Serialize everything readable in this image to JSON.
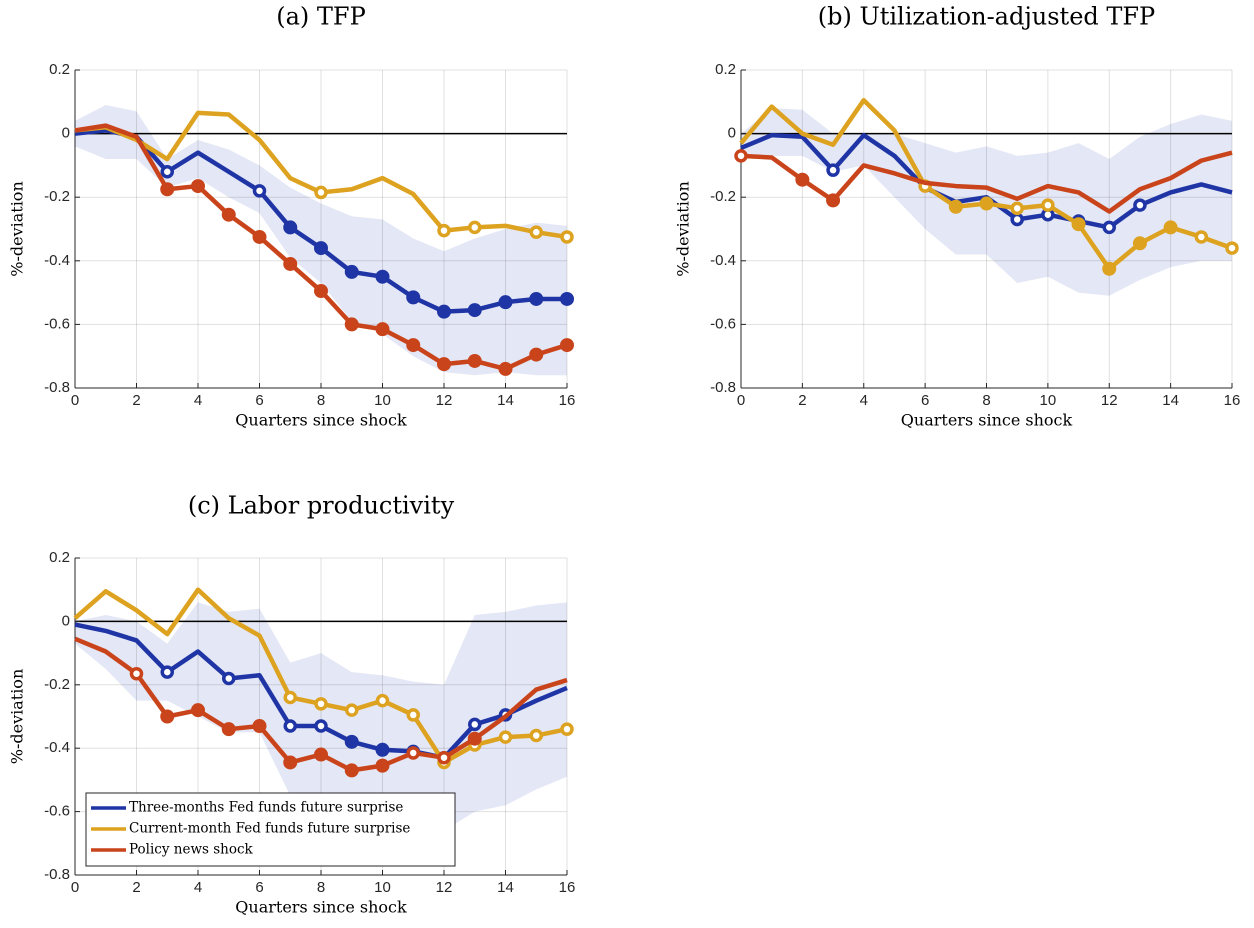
{
  "chart_data": [
    {
      "type": "line",
      "title": "(a) TFP",
      "xlabel": "Quarters since shock",
      "ylabel": "%-deviation",
      "x": [
        0,
        1,
        2,
        3,
        4,
        5,
        6,
        7,
        8,
        9,
        10,
        11,
        12,
        13,
        14,
        15,
        16
      ],
      "xlim": [
        0,
        16
      ],
      "xticks": [
        0,
        2,
        4,
        6,
        8,
        10,
        12,
        14,
        16
      ],
      "ylim": [
        -0.8,
        0.2
      ],
      "yticks": [
        -0.8,
        -0.6,
        -0.4,
        -0.2,
        0,
        0.2
      ],
      "grid": true,
      "hline": 0,
      "band": {
        "color": "#e4e7f5",
        "upper": [
          0.04,
          0.09,
          0.07,
          -0.08,
          -0.02,
          -0.05,
          -0.1,
          -0.17,
          -0.22,
          -0.26,
          -0.27,
          -0.33,
          -0.37,
          -0.33,
          -0.3,
          -0.28,
          -0.29
        ],
        "lower": [
          -0.04,
          -0.08,
          -0.08,
          -0.17,
          -0.14,
          -0.2,
          -0.25,
          -0.39,
          -0.47,
          -0.59,
          -0.63,
          -0.7,
          -0.75,
          -0.76,
          -0.75,
          -0.76,
          -0.76
        ]
      },
      "series": [
        {
          "color": "#1f35a5",
          "values": [
            0,
            0.01,
            -0.01,
            -0.12,
            -0.06,
            -0.12,
            -0.18,
            -0.295,
            -0.36,
            -0.435,
            -0.45,
            -0.515,
            -0.56,
            -0.555,
            -0.53,
            -0.52,
            -0.52
          ],
          "markers": [
            null,
            null,
            null,
            "open",
            null,
            null,
            "open",
            "filled",
            "filled",
            "filled",
            "filled",
            "filled",
            "filled",
            "filled",
            "filled",
            "filled",
            "filled"
          ]
        },
        {
          "color": "#dda21f",
          "values": [
            0.01,
            0.02,
            -0.02,
            -0.08,
            0.065,
            0.06,
            -0.02,
            -0.14,
            -0.185,
            -0.175,
            -0.14,
            -0.19,
            -0.305,
            -0.295,
            -0.29,
            -0.31,
            -0.325
          ],
          "markers": [
            null,
            null,
            null,
            null,
            null,
            null,
            null,
            null,
            "open",
            null,
            null,
            null,
            "open",
            "open",
            null,
            "open",
            "open"
          ]
        },
        {
          "color": "#c9441b",
          "values": [
            0.01,
            0.025,
            -0.01,
            -0.175,
            -0.165,
            -0.255,
            -0.325,
            -0.41,
            -0.495,
            -0.6,
            -0.615,
            -0.665,
            -0.725,
            -0.715,
            -0.74,
            -0.695,
            -0.665
          ],
          "markers": [
            null,
            null,
            null,
            "filled",
            "filled",
            "filled",
            "filled",
            "filled",
            "filled",
            "filled",
            "filled",
            "filled",
            "filled",
            "filled",
            "filled",
            "filled",
            "filled"
          ]
        }
      ]
    },
    {
      "type": "line",
      "title": "(b) Utilization-adjusted TFP",
      "xlabel": "Quarters since shock",
      "ylabel": "%-deviation",
      "x": [
        0,
        1,
        2,
        3,
        4,
        5,
        6,
        7,
        8,
        9,
        10,
        11,
        12,
        13,
        14,
        15,
        16
      ],
      "xlim": [
        0,
        16
      ],
      "xticks": [
        0,
        2,
        4,
        6,
        8,
        10,
        12,
        14,
        16
      ],
      "ylim": [
        -0.8,
        0.2
      ],
      "yticks": [
        -0.8,
        -0.6,
        -0.4,
        -0.2,
        0,
        0.2
      ],
      "grid": true,
      "hline": 0,
      "band": {
        "color": "#e4e7f5",
        "upper": [
          0,
          0.08,
          0.075,
          0,
          0,
          0,
          -0.03,
          -0.06,
          -0.04,
          -0.07,
          -0.06,
          -0.03,
          -0.08,
          -0.01,
          0.03,
          0.06,
          0.04
        ],
        "lower": [
          -0.08,
          -0.07,
          -0.07,
          -0.12,
          -0.1,
          -0.2,
          -0.3,
          -0.38,
          -0.38,
          -0.47,
          -0.45,
          -0.5,
          -0.51,
          -0.46,
          -0.42,
          -0.4,
          -0.4
        ]
      },
      "series": [
        {
          "color": "#1f35a5",
          "values": [
            -0.045,
            -0.005,
            -0.01,
            -0.115,
            -0.005,
            -0.07,
            -0.17,
            -0.215,
            -0.2,
            -0.27,
            -0.255,
            -0.275,
            -0.295,
            -0.225,
            -0.185,
            -0.16,
            -0.185
          ],
          "markers": [
            null,
            null,
            null,
            "open",
            null,
            null,
            null,
            null,
            null,
            "open",
            "open",
            "open",
            "open",
            "open",
            null,
            null,
            null
          ]
        },
        {
          "color": "#dda21f",
          "values": [
            -0.03,
            0.085,
            0,
            -0.035,
            0.105,
            0.01,
            -0.165,
            -0.23,
            -0.22,
            -0.235,
            -0.225,
            -0.285,
            -0.425,
            -0.345,
            -0.295,
            -0.325,
            -0.36
          ],
          "markers": [
            null,
            null,
            null,
            null,
            null,
            null,
            "open",
            "filled",
            "filled",
            "open",
            "open",
            "filled",
            "filled",
            "filled",
            "filled",
            "open",
            "open"
          ]
        },
        {
          "color": "#c9441b",
          "values": [
            -0.07,
            -0.075,
            -0.145,
            -0.21,
            -0.1,
            -0.125,
            -0.155,
            -0.165,
            -0.17,
            -0.205,
            -0.165,
            -0.185,
            -0.245,
            -0.175,
            -0.14,
            -0.085,
            -0.06
          ],
          "markers": [
            "open",
            null,
            "filled",
            "filled",
            null,
            null,
            null,
            null,
            null,
            null,
            null,
            null,
            null,
            null,
            null,
            null,
            null
          ]
        }
      ]
    },
    {
      "type": "line",
      "title": "(c) Labor productivity",
      "xlabel": "Quarters since shock",
      "ylabel": "%-deviation",
      "x": [
        0,
        1,
        2,
        3,
        4,
        5,
        6,
        7,
        8,
        9,
        10,
        11,
        12,
        13,
        14,
        15,
        16
      ],
      "xlim": [
        0,
        16
      ],
      "xticks": [
        0,
        2,
        4,
        6,
        8,
        10,
        12,
        14,
        16
      ],
      "ylim": [
        -0.8,
        0.2
      ],
      "yticks": [
        -0.8,
        -0.6,
        -0.4,
        -0.2,
        0,
        0.2
      ],
      "grid": true,
      "hline": 0,
      "legend": "lower left",
      "band": {
        "color": "#e4e7f5",
        "upper": [
          0,
          0.02,
          0,
          -0.07,
          0.06,
          0.03,
          0.04,
          -0.13,
          -0.1,
          -0.16,
          -0.17,
          -0.19,
          -0.2,
          0.02,
          0.03,
          0.05,
          0.06
        ],
        "lower": [
          -0.07,
          -0.15,
          -0.25,
          -0.25,
          -0.3,
          -0.35,
          -0.35,
          -0.55,
          -0.55,
          -0.56,
          -0.57,
          -0.6,
          -0.66,
          -0.6,
          -0.58,
          -0.53,
          -0.49
        ]
      },
      "series": [
        {
          "name": "Three-months Fed funds future surprise",
          "color": "#1f35a5",
          "values": [
            -0.01,
            -0.03,
            -0.06,
            -0.16,
            -0.095,
            -0.18,
            -0.17,
            -0.33,
            -0.33,
            -0.38,
            -0.405,
            -0.41,
            -0.43,
            -0.325,
            -0.295,
            -0.25,
            -0.21
          ],
          "markers": [
            null,
            null,
            null,
            "open",
            null,
            "open",
            null,
            "open",
            "open",
            "filled",
            "filled",
            "open",
            "open",
            "open",
            "open",
            null,
            null
          ]
        },
        {
          "name": "Current-month Fed funds future surprise",
          "color": "#dda21f",
          "values": [
            0.01,
            0.095,
            0.035,
            -0.04,
            0.1,
            0.01,
            -0.045,
            -0.24,
            -0.26,
            -0.28,
            -0.25,
            -0.295,
            -0.445,
            -0.39,
            -0.365,
            -0.36,
            -0.34
          ],
          "markers": [
            null,
            null,
            null,
            null,
            null,
            null,
            null,
            "open",
            "open",
            "open",
            "open",
            "open",
            "open",
            "open",
            "open",
            "open",
            "open"
          ]
        },
        {
          "name": "Policy news shock",
          "color": "#c9441b",
          "values": [
            -0.055,
            -0.095,
            -0.165,
            -0.3,
            -0.28,
            -0.34,
            -0.33,
            -0.445,
            -0.42,
            -0.47,
            -0.455,
            -0.415,
            -0.43,
            -0.37,
            -0.3,
            -0.215,
            -0.185
          ],
          "markers": [
            null,
            null,
            "open",
            "filled",
            "filled",
            "filled",
            "filled",
            "filled",
            "filled",
            "filled",
            "filled",
            "open",
            "open",
            "filled",
            null,
            null,
            null
          ]
        }
      ]
    }
  ]
}
